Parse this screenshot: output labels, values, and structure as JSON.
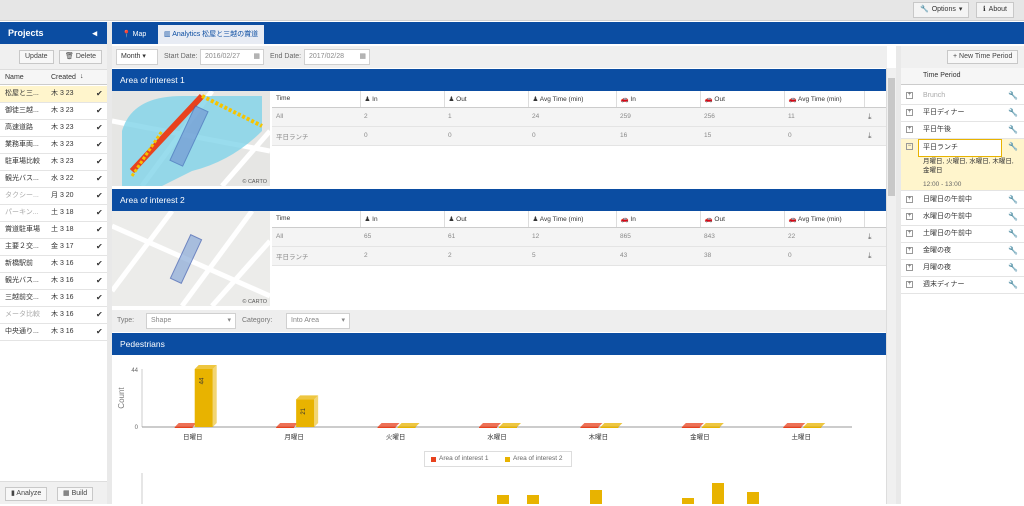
{
  "topbar": {
    "options_label": "Options",
    "about_label": "About"
  },
  "projects": {
    "title": "Projects",
    "update_label": "Update",
    "delete_label": "Delete",
    "col_name": "Name",
    "col_created": "Created",
    "rows": [
      {
        "name": "松屋と三...",
        "date": "木 3 23"
      },
      {
        "name": "御徒三越...",
        "date": "木 3 23"
      },
      {
        "name": "高速道路",
        "date": "木 3 23"
      },
      {
        "name": "業務車両...",
        "date": "木 3 23"
      },
      {
        "name": "駐車場比較",
        "date": "木 3 23"
      },
      {
        "name": "観光バス...",
        "date": "水 3 22"
      },
      {
        "name": "タクシー...",
        "date": "月 3 20"
      },
      {
        "name": "パーキン...",
        "date": "土 3 18"
      },
      {
        "name": "賞道駐車場",
        "date": "土 3 18"
      },
      {
        "name": "主要２交...",
        "date": "金 3 17"
      },
      {
        "name": "新橋駅前",
        "date": "木 3 16"
      },
      {
        "name": "観光バス...",
        "date": "木 3 16"
      },
      {
        "name": "三越前交...",
        "date": "木 3 16"
      },
      {
        "name": "メータ比較",
        "date": "木 3 16"
      },
      {
        "name": "中央通り...",
        "date": "木 3 16"
      }
    ],
    "analyze_label": "Analyze",
    "build_label": "Build"
  },
  "tabs": {
    "map_label": "Map",
    "analytics_label": "Analytics 松屋と三越の賞道"
  },
  "dates": {
    "period": "Month",
    "start_label": "Start Date:",
    "start_value": "2016/02/27",
    "end_label": "End Date:",
    "end_value": "2017/02/28"
  },
  "aoi": [
    {
      "title": "Area of interest 1",
      "rows": [
        {
          "time": "All",
          "a": "2",
          "b": "1",
          "c": "24",
          "d": "259",
          "e": "256",
          "f": "11"
        },
        {
          "time": "平日ランチ",
          "a": "0",
          "b": "0",
          "c": "0",
          "d": "16",
          "e": "15",
          "f": "0"
        }
      ]
    },
    {
      "title": "Area of interest 2",
      "rows": [
        {
          "time": "All",
          "a": "65",
          "b": "61",
          "c": "12",
          "d": "865",
          "e": "843",
          "f": "22"
        },
        {
          "time": "平日ランチ",
          "a": "2",
          "b": "2",
          "c": "5",
          "d": "43",
          "e": "38",
          "f": "0"
        }
      ]
    }
  ],
  "table_headers": {
    "time": "Time",
    "in": "In",
    "out": "Out",
    "avg": "Avg Time (min)"
  },
  "carto": "© CARTO",
  "filters": {
    "type_label": "Type:",
    "type_value": "Shape",
    "category_label": "Category:",
    "category_value": "Into Area"
  },
  "pedestrians_title": "Pedestrians",
  "chart_data": {
    "type": "bar",
    "title": "",
    "ylabel": "Count",
    "ylim": [
      0,
      44
    ],
    "categories": [
      "日曜日",
      "月曜日",
      "火曜日",
      "水曜日",
      "木曜日",
      "金曜日",
      "土曜日"
    ],
    "series": [
      {
        "name": "Area of interest 1",
        "color": "#e8421e",
        "values": [
          0,
          0,
          0,
          0,
          0,
          0,
          0
        ]
      },
      {
        "name": "Area of interest 2",
        "color": "#e8b300",
        "values": [
          44,
          21,
          0,
          0,
          0,
          0,
          0
        ]
      }
    ],
    "y_ticks": [
      "44",
      "0"
    ]
  },
  "timeperiods": {
    "new_label": "New Time Period",
    "col_label": "Time Period",
    "items": [
      {
        "label": "Brunch",
        "dim": true
      },
      {
        "label": "平日ディナー",
        "dim": false
      },
      {
        "label": "平日午後",
        "dim": false
      },
      {
        "label": "平日ランチ",
        "dim": false
      },
      {
        "label": "日曜日の午前中",
        "dim": false
      },
      {
        "label": "水曜日の午前中",
        "dim": false
      },
      {
        "label": "土曜日の午前中",
        "dim": false
      },
      {
        "label": "金曜の夜",
        "dim": false
      },
      {
        "label": "月曜の夜",
        "dim": false
      },
      {
        "label": "週末ディナー",
        "dim": false
      }
    ],
    "expanded_days": "月曜日, 火曜日, 水曜日, 木曜日, 金曜日",
    "expanded_time": "12:00 - 13:00"
  },
  "colors": {
    "header": "#0b4da2",
    "series1": "#e8421e",
    "series2": "#e8b300"
  }
}
